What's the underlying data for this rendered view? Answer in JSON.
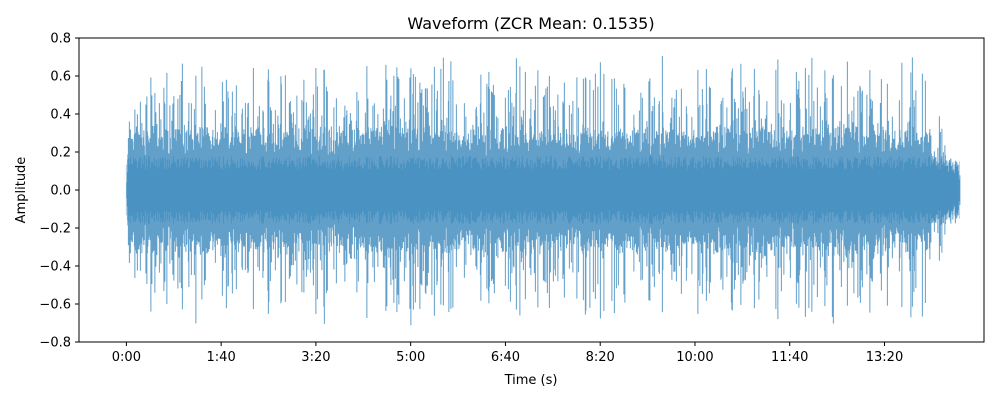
{
  "chart_data": {
    "type": "area",
    "title": "Waveform (ZCR Mean: 0.1535)",
    "xlabel": "Time (s)",
    "ylabel": "Amplitude",
    "xlim": [
      -50,
      905
    ],
    "ylim": [
      -0.8,
      0.8
    ],
    "data_range_seconds": [
      0,
      880
    ],
    "x_ticks": [
      {
        "value": 0,
        "label": "0:00"
      },
      {
        "value": 100,
        "label": "1:40"
      },
      {
        "value": 200,
        "label": "3:20"
      },
      {
        "value": 300,
        "label": "5:00"
      },
      {
        "value": 400,
        "label": "6:40"
      },
      {
        "value": 500,
        "label": "8:20"
      },
      {
        "value": 600,
        "label": "10:00"
      },
      {
        "value": 700,
        "label": "11:40"
      },
      {
        "value": 800,
        "label": "13:20"
      }
    ],
    "y_ticks": [
      {
        "value": 0.8,
        "label": "0.8"
      },
      {
        "value": 0.6,
        "label": "0.6"
      },
      {
        "value": 0.4,
        "label": "0.4"
      },
      {
        "value": 0.2,
        "label": "0.2"
      },
      {
        "value": 0.0,
        "label": "0.0"
      },
      {
        "value": -0.2,
        "label": "−0.2"
      },
      {
        "value": -0.4,
        "label": "−0.4"
      },
      {
        "value": -0.6,
        "label": "−0.6"
      },
      {
        "value": -0.8,
        "label": "−0.8"
      }
    ],
    "series": [
      {
        "color": "#1f77b4",
        "opacity": 0.7,
        "peak_amplitude": 0.72,
        "typical_amplitude": 0.35
      }
    ],
    "grid": false,
    "legend": "none"
  }
}
